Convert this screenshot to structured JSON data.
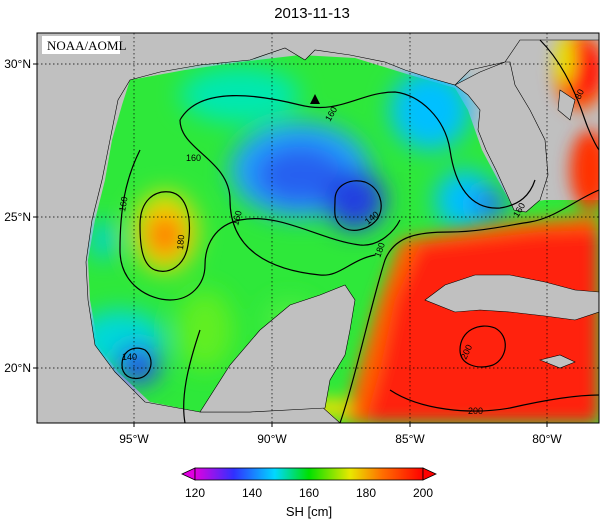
{
  "title": "2013-11-13",
  "credit": "NOAA/AOML",
  "map": {
    "lat_ticks": [
      "30°N",
      "25°N",
      "20°N"
    ],
    "lon_ticks": [
      "95°W",
      "90°W",
      "85°W",
      "80°W"
    ],
    "contour_labels": [
      "160",
      "160",
      "160",
      "160",
      "180",
      "140",
      "180",
      "160",
      "80",
      "140",
      "200",
      "200"
    ],
    "colors": {
      "land": "#c0c0c0",
      "ocean_base": "#2ee83a",
      "low": "#3050e8",
      "high": "#ff2010"
    },
    "marker": "triangle-marker"
  },
  "colorbar": {
    "ticks": [
      "120",
      "140",
      "160",
      "180",
      "200"
    ],
    "unit": "SH [cm]",
    "stops": [
      "#e000e0",
      "#3030ff",
      "#00e0ff",
      "#00e000",
      "#e0e000",
      "#ff7000",
      "#ff0000"
    ]
  }
}
